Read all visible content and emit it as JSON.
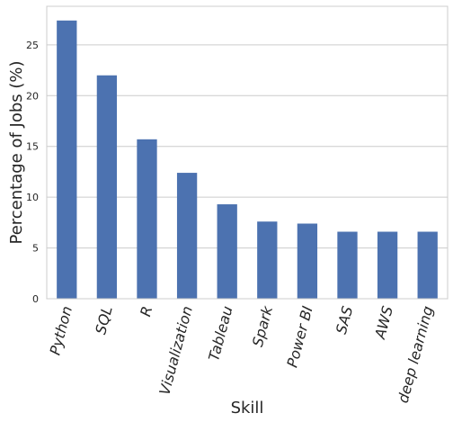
{
  "chart_data": {
    "type": "bar",
    "categories": [
      "Python",
      "SQL",
      "R",
      "Visualization",
      "Tableau",
      "Spark",
      "Power BI",
      "SAS",
      "AWS",
      "deep learning"
    ],
    "values": [
      27.4,
      22.0,
      15.7,
      12.4,
      9.3,
      7.6,
      7.4,
      6.6,
      6.6,
      6.6
    ],
    "title": "",
    "xlabel": "Skill",
    "ylabel": "Percentage of Jobs (%)",
    "ylim": [
      0,
      28.8
    ],
    "yticks": [
      0,
      5,
      10,
      15,
      20,
      25
    ],
    "grid": "y",
    "legend": "none",
    "colors": {
      "bar": "#4c72b0",
      "grid": "#cccccc",
      "spine": "#cccccc",
      "text": "#262626"
    }
  }
}
